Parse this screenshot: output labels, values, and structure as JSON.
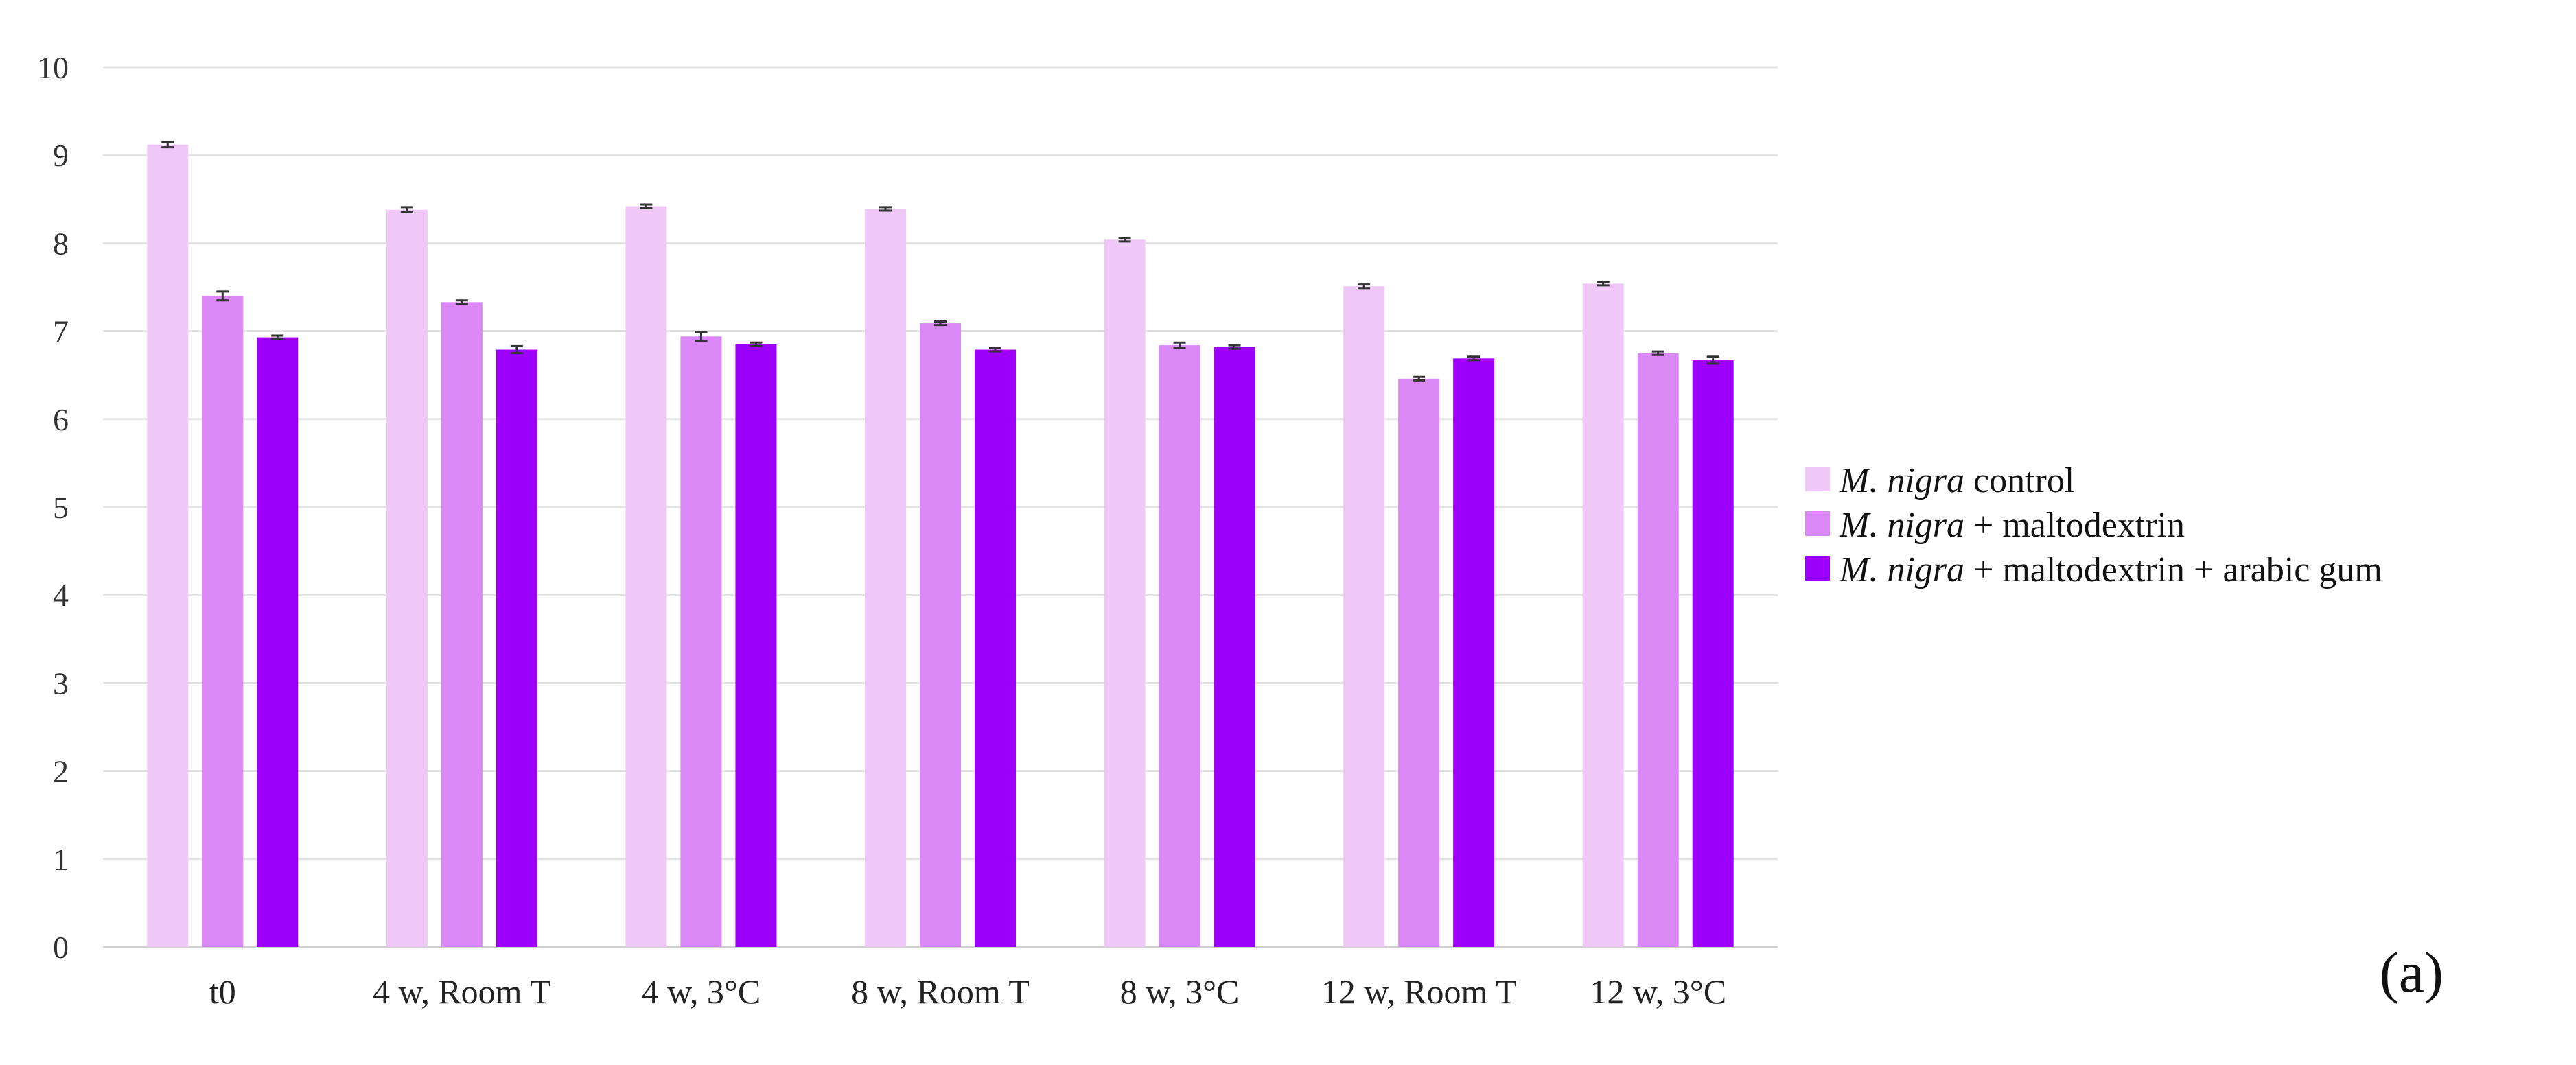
{
  "chart_data": {
    "type": "bar",
    "title": "",
    "xlabel": "",
    "ylabel": "",
    "ylim": [
      0,
      10
    ],
    "yticks": [
      0,
      1,
      2,
      3,
      4,
      5,
      6,
      7,
      8,
      9,
      10
    ],
    "grid": true,
    "legend_position": "right",
    "categories": [
      "t0",
      "4 w, Room T",
      "4 w, 3°C",
      "8 w, Room T",
      "8 w, 3°C",
      "12 w, Room T",
      "12 w, 3°C"
    ],
    "series": [
      {
        "name_italic": "M. nigra",
        "name_rest": " control",
        "color": "#efc8f8",
        "values": [
          9.12,
          8.38,
          8.42,
          8.39,
          8.04,
          7.51,
          7.54
        ],
        "errors": [
          0.03,
          0.03,
          0.02,
          0.02,
          0.02,
          0.02,
          0.02
        ]
      },
      {
        "name_italic": "M. nigra",
        "name_rest": " + maltodextrin",
        "color": "#da88f6",
        "values": [
          7.4,
          7.33,
          6.94,
          7.09,
          6.84,
          6.46,
          6.75
        ],
        "errors": [
          0.05,
          0.02,
          0.05,
          0.02,
          0.03,
          0.02,
          0.02
        ]
      },
      {
        "name_italic": "M. nigra",
        "name_rest": " + maltodextrin + arabic gum",
        "color": "#9c00fa",
        "values": [
          6.93,
          6.79,
          6.85,
          6.79,
          6.82,
          6.69,
          6.67
        ],
        "errors": [
          0.02,
          0.04,
          0.02,
          0.02,
          0.02,
          0.02,
          0.04
        ]
      }
    ],
    "panel_label": "(a)"
  }
}
